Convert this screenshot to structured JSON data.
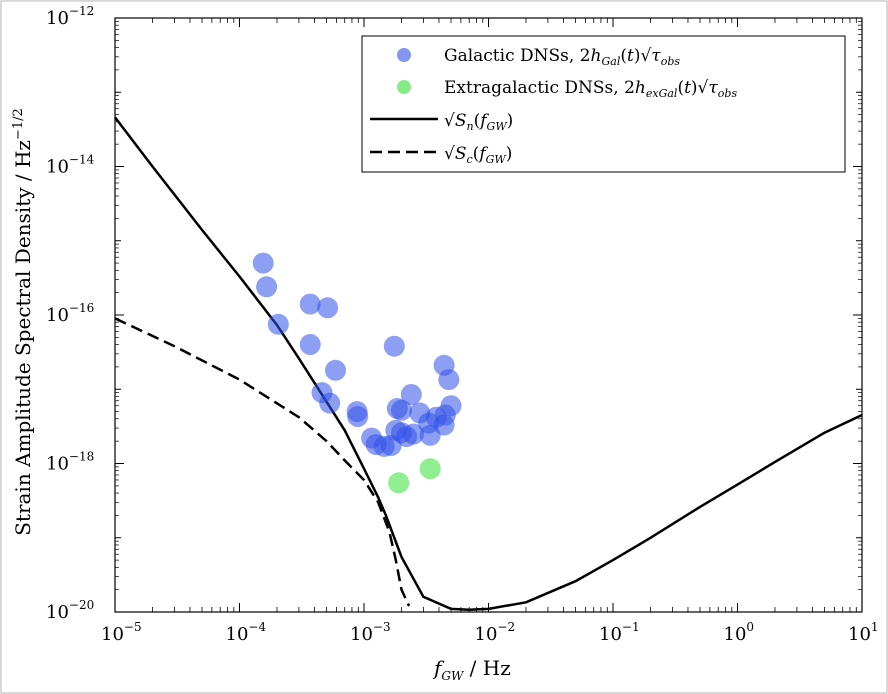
{
  "chart_data": {
    "type": "scatter",
    "xscale": "log",
    "yscale": "log",
    "xlim": [
      1e-05,
      10
    ],
    "ylim": [
      1e-20,
      1e-12
    ],
    "xlabel": "f_GW / Hz",
    "ylabel": "Strain Amplitude Spectral Density / Hz^-1/2",
    "xlabel_parts": {
      "f": "f",
      "sub": "GW",
      "rest": " / Hz"
    },
    "ylabel_parts": {
      "main": "Strain Amplitude Spectral Density / Hz",
      "exp": "−1/2"
    },
    "x_ticks": [
      {
        "base": "10",
        "exp": "−5"
      },
      {
        "base": "10",
        "exp": "−4"
      },
      {
        "base": "10",
        "exp": "−3"
      },
      {
        "base": "10",
        "exp": "−2"
      },
      {
        "base": "10",
        "exp": "−1"
      },
      {
        "base": "10",
        "exp": "0"
      },
      {
        "base": "10",
        "exp": "1"
      }
    ],
    "y_ticks": [
      {
        "base": "10",
        "exp": "−20"
      },
      {
        "base": "10",
        "exp": "−18"
      },
      {
        "base": "10",
        "exp": "−16"
      },
      {
        "base": "10",
        "exp": "−14"
      },
      {
        "base": "10",
        "exp": "−12"
      }
    ],
    "legend": {
      "placement": "top-right",
      "galactic": "Galactic DNSs, 2h_Gal(t)√τ_obs",
      "extragalactic": "Extragalactic DNSs, 2h_exGal(t)√τ_obs",
      "sn": "√S_n(f_GW)",
      "sc": "√S_c(f_GW)"
    },
    "colors": {
      "galactic": "#3050e8",
      "extragalactic": "#33e033",
      "curve": "#000000"
    },
    "series": [
      {
        "name": "Galactic DNSs",
        "kind": "scatter",
        "points": [
          [
            0.000155,
            5e-16
          ],
          [
            0.000165,
            2.4e-16
          ],
          [
            0.000205,
            7.5e-17
          ],
          [
            0.00037,
            1.4e-16
          ],
          [
            0.00051,
            1.25e-16
          ],
          [
            0.00037,
            4e-17
          ],
          [
            0.00059,
            1.8e-17
          ],
          [
            0.00046,
            9e-18
          ],
          [
            0.00053,
            6.5e-18
          ],
          [
            0.00088,
            5e-18
          ],
          [
            0.00089,
            4.3e-18
          ],
          [
            0.00175,
            3.8e-17
          ],
          [
            0.00115,
            2.2e-18
          ],
          [
            0.00125,
            1.8e-18
          ],
          [
            0.00145,
            1.7e-18
          ],
          [
            0.00165,
            1.75e-18
          ],
          [
            0.0018,
            2.8e-18
          ],
          [
            0.00185,
            5.5e-18
          ],
          [
            0.002,
            5.2e-18
          ],
          [
            0.0024,
            8.5e-18
          ],
          [
            0.0025,
            2.5e-18
          ],
          [
            0.0022,
            2.3e-18
          ],
          [
            0.0028,
            4.8e-18
          ],
          [
            0.0033,
            3.5e-18
          ],
          [
            0.0038,
            4.2e-18
          ],
          [
            0.0044,
            3.3e-18
          ],
          [
            0.0045,
            4.5e-18
          ],
          [
            0.0044,
            2.1e-17
          ],
          [
            0.0048,
            1.35e-17
          ],
          [
            0.005,
            6e-18
          ],
          [
            0.0034,
            2.4e-18
          ],
          [
            0.002,
            2.6e-18
          ]
        ]
      },
      {
        "name": "Extragalactic DNSs",
        "kind": "scatter",
        "points": [
          [
            0.0019,
            5.5e-19
          ],
          [
            0.0034,
            8.5e-19
          ]
        ]
      },
      {
        "name": "Sn",
        "kind": "line",
        "points": [
          [
            1e-05,
            4.6e-14
          ],
          [
            2e-05,
            1e-14
          ],
          [
            5e-05,
            1.4e-15
          ],
          [
            0.0001,
            3.3e-16
          ],
          [
            0.0002,
            7.3e-17
          ],
          [
            0.0003,
            2.6e-17
          ],
          [
            0.0005,
            6.8e-18
          ],
          [
            0.0007,
            2.8e-18
          ],
          [
            0.001,
            8.5e-19
          ],
          [
            0.0013,
            3.5e-19
          ],
          [
            0.0015,
            2e-19
          ],
          [
            0.002,
            5.5e-20
          ],
          [
            0.003,
            1.6e-20
          ],
          [
            0.005,
            1.1e-20
          ],
          [
            0.007,
            1.07e-20
          ],
          [
            0.01,
            1.1e-20
          ],
          [
            0.02,
            1.35e-20
          ],
          [
            0.05,
            2.6e-20
          ],
          [
            0.1,
            5e-20
          ],
          [
            0.2,
            1e-19
          ],
          [
            0.5,
            2.6e-19
          ],
          [
            1,
            5.2e-19
          ],
          [
            2,
            1.05e-18
          ],
          [
            5,
            2.6e-18
          ],
          [
            10,
            4.5e-18
          ]
        ]
      },
      {
        "name": "Sc",
        "kind": "line",
        "dashed": true,
        "points": [
          [
            1e-05,
            9e-17
          ],
          [
            3e-05,
            3.8e-17
          ],
          [
            0.0001,
            1.35e-17
          ],
          [
            0.0003,
            4.2e-18
          ],
          [
            0.0005,
            2e-18
          ],
          [
            0.0007,
            1.1e-18
          ],
          [
            0.001,
            6e-19
          ],
          [
            0.0013,
            3e-19
          ],
          [
            0.0016,
            1.2e-19
          ],
          [
            0.0018,
            5e-20
          ],
          [
            0.002,
            2e-20
          ],
          [
            0.0023,
            1.2e-20
          ]
        ]
      }
    ]
  }
}
